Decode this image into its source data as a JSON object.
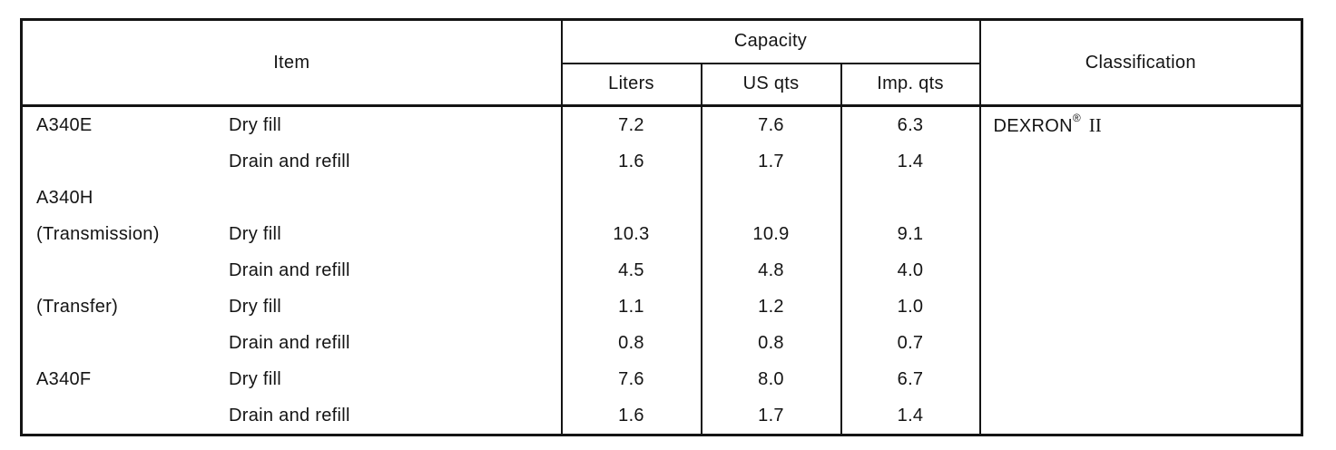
{
  "document": {
    "background": "#ffffff",
    "ink_color": "#141414"
  },
  "table": {
    "headers": {
      "item": "Item",
      "capacity": "Capacity",
      "liters": "Liters",
      "us_qts": "US qts",
      "imp_qts": "Imp. qts",
      "classification": "Classification"
    },
    "classification_value": {
      "brand": "DEXRON",
      "reg_mark": "®",
      "grade": "II"
    },
    "rows": [
      {
        "item": "A340E",
        "fill": "Dry fill",
        "liters": "7.2",
        "us_qts": "7.6",
        "imp_qts": "6.3"
      },
      {
        "item": "",
        "fill": "Drain and refill",
        "liters": "1.6",
        "us_qts": "1.7",
        "imp_qts": "1.4"
      },
      {
        "item": "A340H",
        "fill": "",
        "liters": "",
        "us_qts": "",
        "imp_qts": ""
      },
      {
        "item": "(Transmission)",
        "fill": "Dry fill",
        "liters": "10.3",
        "us_qts": "10.9",
        "imp_qts": "9.1"
      },
      {
        "item": "",
        "fill": "Drain and refill",
        "liters": "4.5",
        "us_qts": "4.8",
        "imp_qts": "4.0"
      },
      {
        "item": "(Transfer)",
        "fill": "Dry fill",
        "liters": "1.1",
        "us_qts": "1.2",
        "imp_qts": "1.0"
      },
      {
        "item": "",
        "fill": "Drain and refill",
        "liters": "0.8",
        "us_qts": "0.8",
        "imp_qts": "0.7"
      },
      {
        "item": "A340F",
        "fill": "Dry fill",
        "liters": "7.6",
        "us_qts": "8.0",
        "imp_qts": "6.7"
      },
      {
        "item": "",
        "fill": "Drain and refill",
        "liters": "1.6",
        "us_qts": "1.7",
        "imp_qts": "1.4"
      }
    ]
  }
}
